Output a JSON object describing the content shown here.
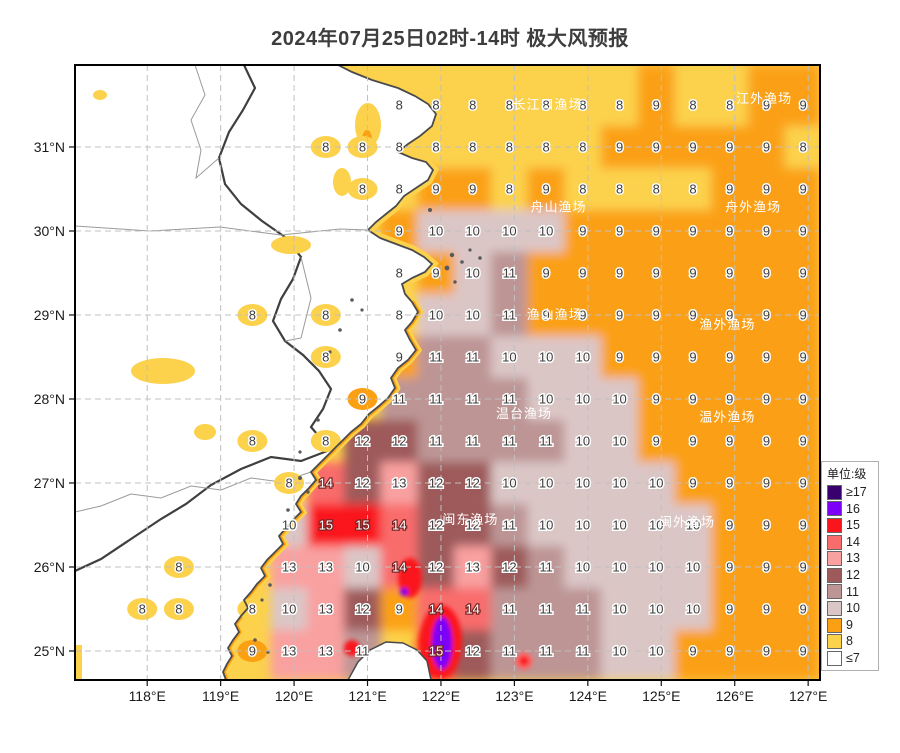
{
  "title": "2024年07月25日02时-14时 极大风预报",
  "legend": {
    "title": "单位:级",
    "entries": [
      {
        "label": "≥17",
        "color": "#38006e"
      },
      {
        "label": "16",
        "color": "#7c00f8"
      },
      {
        "label": "15",
        "color": "#fa141c"
      },
      {
        "label": "14",
        "color": "#f96c6c"
      },
      {
        "label": "13",
        "color": "#f9a0a0"
      },
      {
        "label": "12",
        "color": "#9e5a5a"
      },
      {
        "label": "11",
        "color": "#bd9595"
      },
      {
        "label": "10",
        "color": "#dbc6c6"
      },
      {
        "label": "9",
        "color": "#fba013"
      },
      {
        "label": "8",
        "color": "#fcd14b"
      },
      {
        "label": "≤7",
        "color": "#ffffff"
      }
    ]
  },
  "map": {
    "lon_ticks": [
      {
        "value": 118,
        "label": "118°E"
      },
      {
        "value": 119,
        "label": "119°E"
      },
      {
        "value": 120,
        "label": "120°E"
      },
      {
        "value": 121,
        "label": "121°E"
      },
      {
        "value": 122,
        "label": "122°E"
      },
      {
        "value": 123,
        "label": "123°E"
      },
      {
        "value": 124,
        "label": "124°E"
      },
      {
        "value": 125,
        "label": "125°E"
      },
      {
        "value": 126,
        "label": "126°E"
      },
      {
        "value": 127,
        "label": "127°E"
      }
    ],
    "lat_ticks": [
      {
        "value": 31,
        "label": "31°N"
      },
      {
        "value": 30,
        "label": "30°N"
      },
      {
        "value": 29,
        "label": "29°N"
      },
      {
        "value": 28,
        "label": "28°N"
      },
      {
        "value": 27,
        "label": "27°N"
      },
      {
        "value": 26,
        "label": "26°N"
      },
      {
        "value": 25,
        "label": "25°N"
      }
    ],
    "fishing_grounds": [
      {
        "name": "长江口渔场",
        "lon": 123.45,
        "lat": 31.5
      },
      {
        "name": "江外渔场",
        "lon": 126.4,
        "lat": 31.57
      },
      {
        "name": "舟山渔场",
        "lon": 123.6,
        "lat": 30.28
      },
      {
        "name": "舟外渔场",
        "lon": 126.25,
        "lat": 30.28
      },
      {
        "name": "渔山渔场",
        "lon": 123.55,
        "lat": 29.0
      },
      {
        "name": "渔外渔场",
        "lon": 125.9,
        "lat": 28.88
      },
      {
        "name": "温台渔场",
        "lon": 123.13,
        "lat": 27.82
      },
      {
        "name": "温外渔场",
        "lon": 125.9,
        "lat": 27.78
      },
      {
        "name": "闽东渔场",
        "lon": 122.4,
        "lat": 26.56
      },
      {
        "name": "闽外渔场",
        "lon": 125.35,
        "lat": 26.53
      }
    ]
  },
  "colors": {
    "scale": {
      "7": "#ffffff",
      "8": "#fcd14b",
      "9": "#fba013",
      "10": "#dbc6c6",
      "11": "#bd9595",
      "12": "#9e5a5a",
      "13": "#f9a0a0",
      "14": "#f96c6c",
      "15": "#fa141c",
      "16": "#7c00f8",
      "17": "#38006e"
    },
    "land": "#ffffff",
    "coast": "#4a4a4a",
    "graticule": "#c0c0c0"
  },
  "chart_data": {
    "type": "heatmap",
    "title": "2024年07月25日02时-14时 极大风预报",
    "units": "级",
    "xlabel": "经度",
    "ylabel": "纬度",
    "lon_range": [
      118,
      127
    ],
    "lat_range": [
      25,
      31.5
    ],
    "grid_step_deg": 0.5,
    "legend_position": "right",
    "grid": "dashed",
    "rows": [
      {
        "lat": 31.5,
        "cells": [
          [
            121.5,
            8
          ],
          [
            122,
            8
          ],
          [
            122.5,
            8
          ],
          [
            123,
            8
          ],
          [
            123.5,
            8
          ],
          [
            124,
            8
          ],
          [
            124.5,
            8
          ],
          [
            125,
            9
          ],
          [
            125.5,
            8
          ],
          [
            126,
            8
          ],
          [
            126.5,
            9
          ],
          [
            127,
            9
          ]
        ]
      },
      {
        "lat": 31.0,
        "cells": [
          [
            120.5,
            8,
            1
          ],
          [
            121,
            8,
            1
          ],
          [
            121.5,
            8
          ],
          [
            122,
            8
          ],
          [
            122.5,
            8
          ],
          [
            123,
            8
          ],
          [
            123.5,
            8
          ],
          [
            124,
            8
          ],
          [
            124.5,
            9
          ],
          [
            125,
            9
          ],
          [
            125.5,
            9
          ],
          [
            126,
            9
          ],
          [
            126.5,
            9
          ],
          [
            127,
            8
          ]
        ]
      },
      {
        "lat": 30.5,
        "cells": [
          [
            121,
            8,
            1
          ],
          [
            121.5,
            8
          ],
          [
            122,
            9
          ],
          [
            122.5,
            9
          ],
          [
            123,
            8
          ],
          [
            123.5,
            9
          ],
          [
            124,
            8
          ],
          [
            124.5,
            8
          ],
          [
            125,
            8
          ],
          [
            125.5,
            8
          ],
          [
            126,
            9
          ],
          [
            126.5,
            9
          ],
          [
            127,
            9
          ]
        ]
      },
      {
        "lat": 30.0,
        "cells": [
          [
            121.5,
            9
          ],
          [
            122,
            10
          ],
          [
            122.5,
            10
          ],
          [
            123,
            10
          ],
          [
            123.5,
            10
          ],
          [
            124,
            9
          ],
          [
            124.5,
            9
          ],
          [
            125,
            9
          ],
          [
            125.5,
            9
          ],
          [
            126,
            9
          ],
          [
            126.5,
            9
          ],
          [
            127,
            9
          ]
        ]
      },
      {
        "lat": 29.5,
        "cells": [
          [
            121.5,
            8
          ],
          [
            122,
            9
          ],
          [
            122.5,
            10
          ],
          [
            123,
            11
          ],
          [
            123.5,
            9
          ],
          [
            124,
            9
          ],
          [
            124.5,
            9
          ],
          [
            125,
            9
          ],
          [
            125.5,
            9
          ],
          [
            126,
            9
          ],
          [
            126.5,
            9
          ],
          [
            127,
            9
          ]
        ]
      },
      {
        "lat": 29.0,
        "cells": [
          [
            119.5,
            8,
            1
          ],
          [
            120.5,
            8,
            1
          ],
          [
            121.5,
            8
          ],
          [
            122,
            10
          ],
          [
            122.5,
            10
          ],
          [
            123,
            11
          ],
          [
            123.5,
            9
          ],
          [
            124,
            9
          ],
          [
            124.5,
            9
          ],
          [
            125,
            9
          ],
          [
            125.5,
            9
          ],
          [
            126,
            9
          ],
          [
            126.5,
            9
          ],
          [
            127,
            9
          ]
        ]
      },
      {
        "lat": 28.5,
        "cells": [
          [
            120.5,
            8,
            1
          ],
          [
            121.5,
            9
          ],
          [
            122,
            11
          ],
          [
            122.5,
            11
          ],
          [
            123,
            10
          ],
          [
            123.5,
            10
          ],
          [
            124,
            10
          ],
          [
            124.5,
            9
          ],
          [
            125,
            9
          ],
          [
            125.5,
            9
          ],
          [
            126,
            9
          ],
          [
            126.5,
            9
          ],
          [
            127,
            9
          ]
        ]
      },
      {
        "lat": 28.0,
        "cells": [
          [
            121,
            9,
            1
          ],
          [
            121.5,
            11
          ],
          [
            122,
            11
          ],
          [
            122.5,
            11
          ],
          [
            123,
            11
          ],
          [
            123.5,
            10
          ],
          [
            124,
            10
          ],
          [
            124.5,
            10
          ],
          [
            125,
            9
          ],
          [
            125.5,
            9
          ],
          [
            126,
            9
          ],
          [
            126.5,
            9
          ],
          [
            127,
            9
          ]
        ]
      },
      {
        "lat": 27.5,
        "cells": [
          [
            119.5,
            8,
            1
          ],
          [
            120.5,
            8,
            1
          ],
          [
            121,
            12
          ],
          [
            121.5,
            12
          ],
          [
            122,
            11
          ],
          [
            122.5,
            11
          ],
          [
            123,
            11
          ],
          [
            123.5,
            11
          ],
          [
            124,
            10
          ],
          [
            124.5,
            10
          ],
          [
            125,
            9
          ],
          [
            125.5,
            9
          ],
          [
            126,
            9
          ],
          [
            126.5,
            9
          ],
          [
            127,
            9
          ]
        ]
      },
      {
        "lat": 27.0,
        "cells": [
          [
            120,
            8,
            1
          ],
          [
            120.5,
            14
          ],
          [
            121,
            12
          ],
          [
            121.5,
            13
          ],
          [
            122,
            12
          ],
          [
            122.5,
            12
          ],
          [
            123,
            10
          ],
          [
            123.5,
            10
          ],
          [
            124,
            10
          ],
          [
            124.5,
            10
          ],
          [
            125,
            10
          ],
          [
            125.5,
            9
          ],
          [
            126,
            9
          ],
          [
            126.5,
            9
          ],
          [
            127,
            9
          ]
        ]
      },
      {
        "lat": 26.5,
        "cells": [
          [
            120,
            10
          ],
          [
            120.5,
            15
          ],
          [
            121,
            15
          ],
          [
            121.5,
            14
          ],
          [
            122,
            12
          ],
          [
            122.5,
            12
          ],
          [
            123,
            11
          ],
          [
            123.5,
            10
          ],
          [
            124,
            10
          ],
          [
            124.5,
            10
          ],
          [
            125,
            10
          ],
          [
            125.5,
            10
          ],
          [
            126,
            9
          ],
          [
            126.5,
            9
          ],
          [
            127,
            9
          ]
        ]
      },
      {
        "lat": 26.0,
        "cells": [
          [
            118.5,
            8,
            1
          ],
          [
            120,
            13
          ],
          [
            120.5,
            13
          ],
          [
            121,
            10
          ],
          [
            121.5,
            14
          ],
          [
            122,
            12
          ],
          [
            122.5,
            13
          ],
          [
            123,
            12
          ],
          [
            123.5,
            11
          ],
          [
            124,
            10
          ],
          [
            124.5,
            10
          ],
          [
            125,
            10
          ],
          [
            125.5,
            10
          ],
          [
            126,
            9
          ],
          [
            126.5,
            9
          ],
          [
            127,
            9
          ]
        ]
      },
      {
        "lat": 25.5,
        "cells": [
          [
            118,
            8,
            1
          ],
          [
            118.5,
            8,
            1
          ],
          [
            119.5,
            8,
            1
          ],
          [
            120,
            10
          ],
          [
            120.5,
            13
          ],
          [
            121,
            12
          ],
          [
            121.5,
            9
          ],
          [
            122,
            14
          ],
          [
            122.5,
            14
          ],
          [
            123,
            11
          ],
          [
            123.5,
            11
          ],
          [
            124,
            11
          ],
          [
            124.5,
            10
          ],
          [
            125,
            10
          ],
          [
            125.5,
            10
          ],
          [
            126,
            9
          ],
          [
            126.5,
            9
          ],
          [
            127,
            9
          ]
        ]
      },
      {
        "lat": 25.0,
        "cells": [
          [
            119.5,
            9,
            1
          ],
          [
            120,
            13
          ],
          [
            120.5,
            13
          ],
          [
            121,
            11
          ],
          [
            122,
            15
          ],
          [
            122.5,
            12
          ],
          [
            123,
            11
          ],
          [
            123.5,
            11
          ],
          [
            124,
            11
          ],
          [
            124.5,
            10
          ],
          [
            125,
            10
          ],
          [
            125.5,
            9
          ],
          [
            126,
            9
          ],
          [
            126.5,
            9
          ],
          [
            127,
            9
          ]
        ]
      }
    ]
  }
}
